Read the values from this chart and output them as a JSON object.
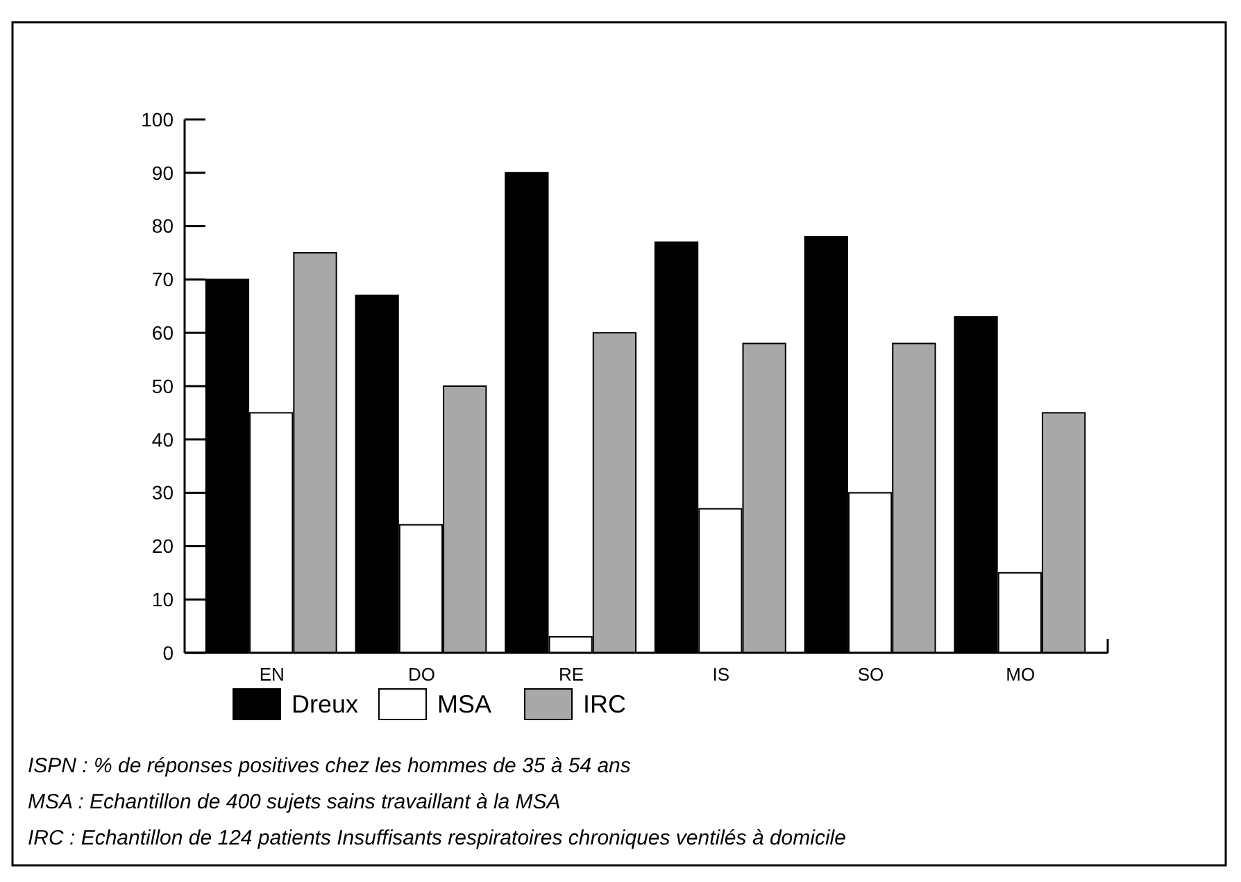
{
  "chart_data": {
    "type": "bar",
    "categories": [
      "EN",
      "DO",
      "RE",
      "IS",
      "SO",
      "MO"
    ],
    "series": [
      {
        "name": "Dreux",
        "color": "#000000",
        "values": [
          70,
          67,
          90,
          77,
          78,
          63
        ]
      },
      {
        "name": "MSA",
        "color": "#ffffff",
        "values": [
          45,
          24,
          3,
          27,
          30,
          15
        ]
      },
      {
        "name": "IRC",
        "color": "#a8a8a8",
        "values": [
          75,
          50,
          60,
          58,
          58,
          45
        ]
      }
    ],
    "ylim": [
      0,
      100
    ],
    "yticks": [
      0,
      10,
      20,
      30,
      40,
      50,
      60,
      70,
      80,
      90,
      100
    ],
    "grid": false,
    "legend": "bottom",
    "annotations": [
      "ISPN : % de réponses positives chez les hommes de 35 à 54 ans",
      "MSA : Echantillon de 400 sujets sains travaillant à la MSA",
      "IRC : Echantillon de 124 patients Insuffisants respiratoires chroniques ventilés à domicile"
    ]
  }
}
